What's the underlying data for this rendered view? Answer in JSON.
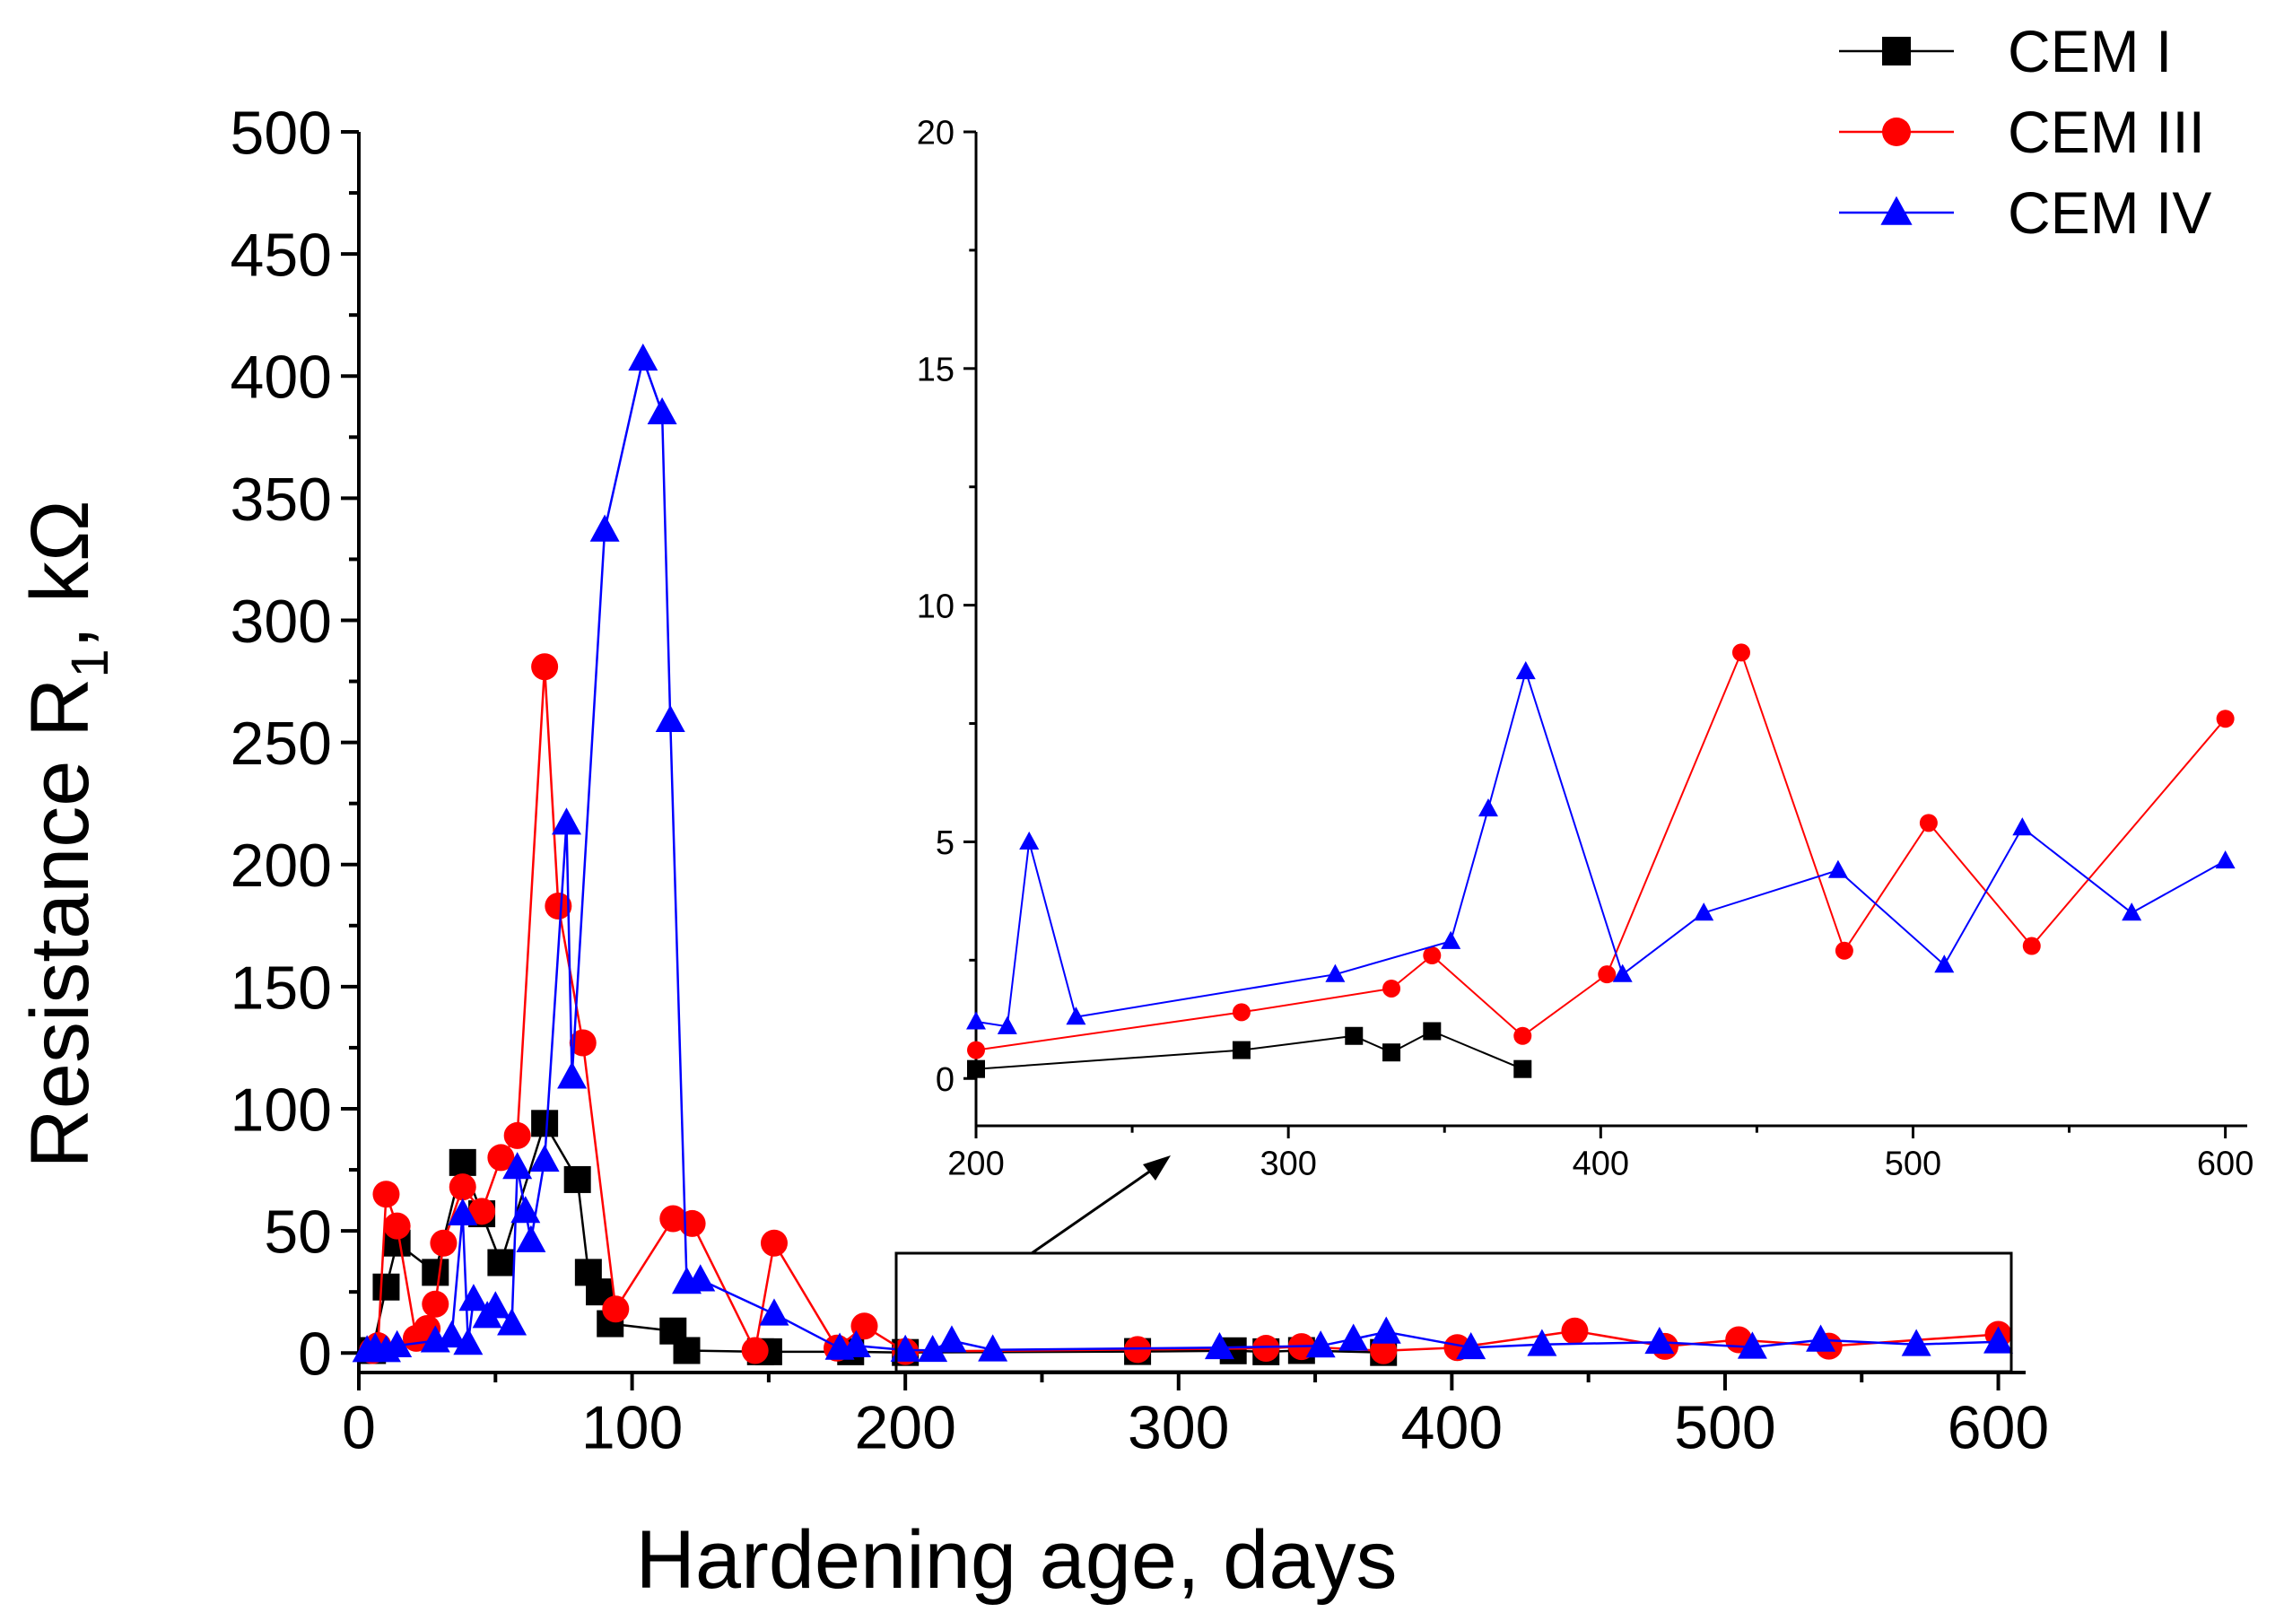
{
  "chart_data": [
    {
      "id": "main",
      "type": "line",
      "xlabel": "Hardening age, days",
      "ylabel_prefix": "Resistance R",
      "ylabel_subscript": "1",
      "ylabel_suffix": ",  kΩ",
      "xlim": [
        0,
        610
      ],
      "ylim": [
        -8,
        500
      ],
      "xticks": [
        0,
        100,
        200,
        300,
        400,
        500,
        600
      ],
      "yticks": [
        0,
        50,
        100,
        150,
        200,
        250,
        300,
        350,
        400,
        450,
        500
      ],
      "series": [
        {
          "name": "CEM I",
          "color": "#000000",
          "marker": "square",
          "x": [
            5,
            10,
            14,
            28,
            38,
            45,
            52,
            68,
            80,
            84,
            88,
            92,
            115,
            120,
            147,
            150,
            180,
            200,
            285,
            320,
            332,
            345,
            375
          ],
          "y": [
            1,
            27,
            45,
            33,
            78,
            57,
            37,
            94,
            71,
            33,
            25,
            12,
            9,
            1,
            0.5,
            0.5,
            0.5,
            0.2,
            0.6,
            0.9,
            0.5,
            1.0,
            0.2
          ]
        },
        {
          "name": "CEM III",
          "color": "#ff0000",
          "marker": "circle",
          "x": [
            5,
            7,
            10,
            14,
            21,
            25,
            28,
            31,
            38,
            45,
            52,
            58,
            68,
            73,
            82,
            94,
            115,
            122,
            145,
            152,
            175,
            185,
            200,
            285,
            332,
            345,
            375,
            402,
            445,
            478,
            505,
            538,
            600
          ],
          "y": [
            1,
            3,
            65,
            52,
            6,
            10,
            20,
            45,
            68,
            58,
            80,
            89,
            281,
            183,
            127,
            18,
            55,
            53,
            1,
            45,
            2,
            11,
            0.6,
            1.4,
            1.9,
            2.6,
            0.9,
            2.2,
            9.0,
            2.7,
            5.4,
            2.8,
            7.6
          ]
        },
        {
          "name": "CEM IV",
          "color": "#0000ff",
          "marker": "triangle",
          "x": [
            3,
            6,
            10,
            14,
            28,
            34,
            38,
            40,
            42,
            47,
            50,
            56,
            58,
            61,
            63,
            68,
            76,
            78,
            90,
            104,
            111,
            114,
            120,
            125,
            152,
            176,
            182,
            200,
            210,
            217,
            232,
            315,
            352,
            364,
            376,
            407,
            433,
            476,
            510,
            535,
            570,
            600
          ],
          "y": [
            1,
            2,
            1,
            3,
            5,
            7,
            57,
            4,
            22,
            15,
            19,
            12,
            76,
            58,
            46,
            79,
            217,
            113,
            337,
            407,
            385,
            259,
            29,
            30,
            16,
            2,
            3,
            1.2,
            1.1,
            5.0,
            1.3,
            2.2,
            2.9,
            5.7,
            8.6,
            2.2,
            3.5,
            4.4,
            2.4,
            5.3,
            3.5,
            4.6
          ]
        }
      ]
    },
    {
      "id": "inset",
      "type": "line",
      "xlim": [
        200,
        607
      ],
      "ylim": [
        -1,
        20
      ],
      "xticks": [
        200,
        300,
        400,
        500,
        600
      ],
      "yticks": [
        0,
        5,
        10,
        15,
        20
      ],
      "series": [
        {
          "name": "CEM I",
          "color": "#000000",
          "marker": "square",
          "x": [
            200,
            285,
            321,
            333,
            346,
            375
          ],
          "y": [
            0.2,
            0.6,
            0.9,
            0.55,
            1.0,
            0.2
          ]
        },
        {
          "name": "CEM III",
          "color": "#ff0000",
          "marker": "circle",
          "x": [
            200,
            285,
            333,
            346,
            375,
            402,
            445,
            478,
            505,
            538,
            600
          ],
          "y": [
            0.6,
            1.4,
            1.9,
            2.6,
            0.9,
            2.2,
            9.0,
            2.7,
            5.4,
            2.8,
            7.6
          ]
        },
        {
          "name": "CEM IV",
          "color": "#0000ff",
          "marker": "triangle",
          "x": [
            200,
            210,
            217,
            232,
            315,
            352,
            364,
            376,
            407,
            433,
            476,
            510,
            535,
            570,
            600
          ],
          "y": [
            1.2,
            1.1,
            5.0,
            1.3,
            2.2,
            2.9,
            5.7,
            8.6,
            2.2,
            3.5,
            4.4,
            2.4,
            5.3,
            3.5,
            4.6
          ]
        }
      ]
    }
  ],
  "legend": {
    "placement": "top-right",
    "entries": [
      {
        "label": "CEM I",
        "color": "#000000",
        "marker": "square"
      },
      {
        "label": "CEM III",
        "color": "#ff0000",
        "marker": "circle"
      },
      {
        "label": "CEM IV",
        "color": "#0000ff",
        "marker": "triangle"
      }
    ]
  }
}
